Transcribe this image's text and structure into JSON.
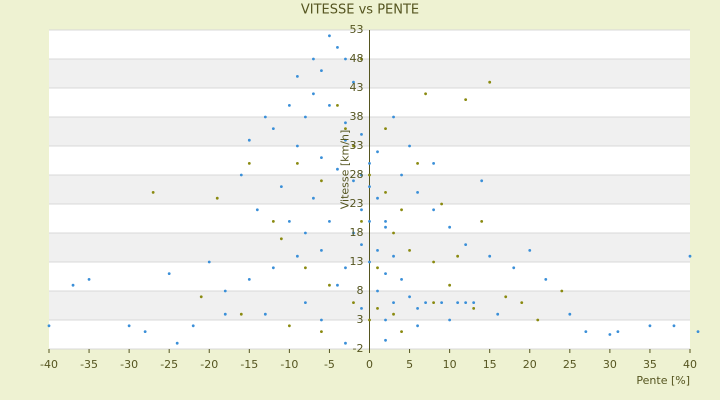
{
  "chart_data": {
    "type": "scatter",
    "title": "VITESSE vs PENTE",
    "x_label": "Pente [%]",
    "y_label": "Vitesse [km/h]",
    "xlim": [
      -40,
      40
    ],
    "xticks": [
      -40,
      -35,
      -30,
      -25,
      -20,
      -15,
      -10,
      -5,
      0,
      5,
      10,
      15,
      20,
      25,
      30,
      35,
      40
    ],
    "ylim": [
      -2,
      53
    ],
    "yticks": [
      -2,
      3,
      8,
      13,
      18,
      23,
      28,
      33,
      38,
      43,
      48,
      53
    ],
    "grid": true,
    "series": [
      {
        "color": "#3a8fd8",
        "x": [
          -5,
          -4,
          -3,
          -6,
          -2,
          -7,
          -5,
          -8,
          -3,
          -1,
          -10,
          -12,
          -9,
          -6,
          -4,
          -2,
          0,
          1,
          -1,
          0,
          2,
          -2,
          -1,
          1,
          3,
          0,
          -3,
          2,
          4,
          -4,
          1,
          5,
          7,
          9,
          11,
          3,
          6,
          12,
          -6,
          -8,
          -10,
          -12,
          -15,
          -18,
          -20,
          -14,
          -16,
          -11,
          -7,
          -5,
          -9,
          -13,
          -22,
          -25,
          -30,
          -35,
          -37,
          -40,
          -28,
          -24,
          -18,
          -8,
          -6,
          4,
          6,
          8,
          10,
          12,
          15,
          18,
          20,
          22,
          25,
          27,
          31,
          35,
          38,
          40,
          41,
          14,
          8,
          5,
          3,
          2,
          -1,
          0,
          1,
          -3,
          -15,
          -13,
          -9,
          -7,
          -1,
          2,
          6,
          10,
          16,
          13,
          30,
          -3,
          2
        ],
        "y": [
          52,
          50,
          48,
          46,
          44,
          42,
          40,
          38,
          37,
          35,
          40,
          36,
          33,
          31,
          29,
          27,
          26,
          24,
          22,
          20,
          19,
          18,
          16,
          15,
          14,
          13,
          12,
          11,
          10,
          9,
          8,
          7,
          6,
          6,
          6,
          6,
          5,
          6,
          15,
          18,
          20,
          12,
          10,
          8,
          13,
          22,
          28,
          26,
          24,
          20,
          14,
          4,
          2,
          11,
          2,
          10,
          9,
          2,
          1,
          -1,
          4,
          6,
          3,
          28,
          25,
          22,
          19,
          16,
          14,
          12,
          15,
          10,
          4,
          1,
          1,
          2,
          2,
          14,
          1,
          27,
          30,
          33,
          38,
          20,
          28,
          30,
          32,
          34,
          34,
          38,
          45,
          48,
          5,
          3,
          2,
          3,
          4,
          6,
          0.5,
          -1,
          -0.5
        ]
      },
      {
        "color": "#8a8a10",
        "x": [
          -1,
          7,
          12,
          15,
          -3,
          -2,
          0,
          2,
          4,
          3,
          5,
          8,
          10,
          -5,
          -8,
          -12,
          -19,
          -27,
          -15,
          -6,
          1,
          3,
          8,
          13,
          17,
          19,
          21,
          14,
          9,
          6,
          2,
          -4,
          -9,
          -11,
          -2,
          0,
          -10,
          -16,
          -21,
          11,
          24,
          -1,
          1,
          4,
          -6
        ],
        "y": [
          48,
          42,
          41,
          44,
          36,
          33,
          28,
          25,
          22,
          18,
          15,
          13,
          9,
          9,
          12,
          20,
          24,
          25,
          30,
          27,
          5,
          4,
          6,
          5,
          7,
          6,
          3,
          20,
          23,
          30,
          36,
          40,
          30,
          17,
          6,
          3,
          2,
          4,
          7,
          14,
          8,
          20,
          12,
          1,
          1
        ]
      }
    ]
  }
}
